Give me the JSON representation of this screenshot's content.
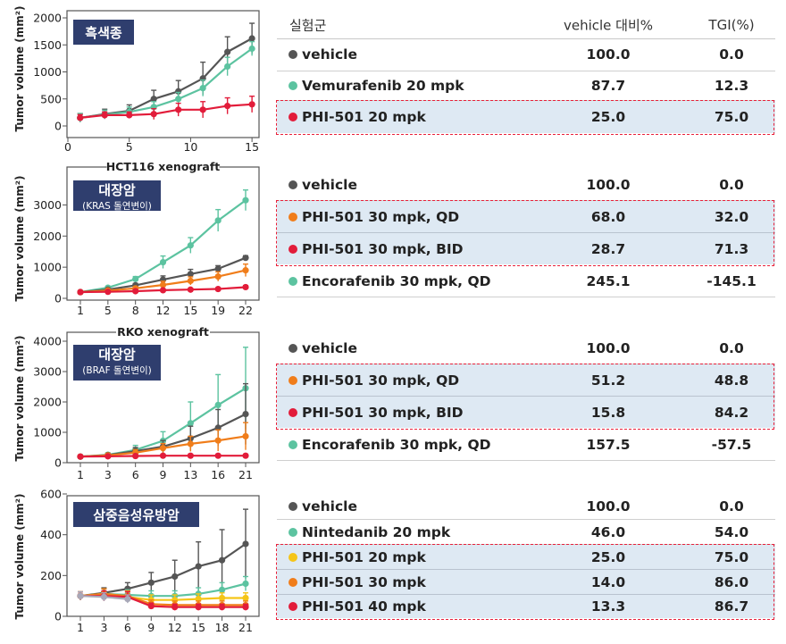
{
  "colors": {
    "vehicle": "#555555",
    "teal": "#5cc3a0",
    "red": "#e21c3a",
    "orange": "#f07d1a",
    "yellow": "#f5c518",
    "gray_light": "#a8a8b8",
    "badge": "#2f3e6e",
    "highlight": "#dee9f3",
    "dash": "#e8203a"
  },
  "table_header": {
    "group": "실험군",
    "vehicle_pct": "vehicle 대비%",
    "tgi": "TGI(%)"
  },
  "charts": [
    {
      "badge": "흑색종",
      "badge_sub": "",
      "panel_title": ""
    },
    {
      "badge": "대장암",
      "badge_sub": "(KRAS 돌연변이)",
      "panel_title": "HCT116 xenograft"
    },
    {
      "badge": "대장암",
      "badge_sub": "(BRAF 돌연변이)",
      "panel_title": "RKO xenograft"
    },
    {
      "badge": "삼중음성유방암",
      "badge_sub": "",
      "panel_title": ""
    }
  ],
  "groups": [
    {
      "rows": [
        {
          "name": "vehicle",
          "color": "vehicle",
          "vehicle_pct": "100.0",
          "tgi": "0.0",
          "hl": false
        },
        {
          "name": "Vemurafenib 20 mpk",
          "color": "teal",
          "vehicle_pct": "87.7",
          "tgi": "12.3",
          "hl": false
        },
        {
          "name": "PHI-501 20 mpk",
          "color": "red",
          "vehicle_pct": "25.0",
          "tgi": "75.0",
          "hl": true
        }
      ]
    },
    {
      "rows": [
        {
          "name": "vehicle",
          "color": "vehicle",
          "vehicle_pct": "100.0",
          "tgi": "0.0",
          "hl": false
        },
        {
          "name": "PHI-501 30 mpk, QD",
          "color": "orange",
          "vehicle_pct": "68.0",
          "tgi": "32.0",
          "hl": true
        },
        {
          "name": "PHI-501 30 mpk, BID",
          "color": "red",
          "vehicle_pct": "28.7",
          "tgi": "71.3",
          "hl": true
        },
        {
          "name": "Encorafenib 30 mpk, QD",
          "color": "teal",
          "vehicle_pct": "245.1",
          "tgi": "-145.1",
          "hl": false
        }
      ]
    },
    {
      "rows": [
        {
          "name": "vehicle",
          "color": "vehicle",
          "vehicle_pct": "100.0",
          "tgi": "0.0",
          "hl": false
        },
        {
          "name": "PHI-501 30 mpk, QD",
          "color": "orange",
          "vehicle_pct": "51.2",
          "tgi": "48.8",
          "hl": true
        },
        {
          "name": "PHI-501 30 mpk, BID",
          "color": "red",
          "vehicle_pct": "15.8",
          "tgi": "84.2",
          "hl": true
        },
        {
          "name": "Encorafenib 30 mpk, QD",
          "color": "teal",
          "vehicle_pct": "157.5",
          "tgi": "-57.5",
          "hl": false
        }
      ]
    },
    {
      "rows": [
        {
          "name": "vehicle",
          "color": "vehicle",
          "vehicle_pct": "100.0",
          "tgi": "0.0",
          "hl": false
        },
        {
          "name": "Nintedanib 20 mpk",
          "color": "teal",
          "vehicle_pct": "46.0",
          "tgi": "54.0",
          "hl": false
        },
        {
          "name": "PHI-501 20 mpk",
          "color": "yellow",
          "vehicle_pct": "25.0",
          "tgi": "75.0",
          "hl": true
        },
        {
          "name": "PHI-501 30 mpk",
          "color": "orange",
          "vehicle_pct": "14.0",
          "tgi": "86.0",
          "hl": true
        },
        {
          "name": "PHI-501 40 mpk",
          "color": "red",
          "vehicle_pct": "13.3",
          "tgi": "86.7",
          "hl": true
        }
      ]
    }
  ],
  "chart_data": [
    {
      "type": "line",
      "ylabel": "Tumor volume (mm²)",
      "ylim": [
        0,
        2000
      ],
      "yticks": [
        0,
        500,
        1000,
        1500,
        2000
      ],
      "xlim": [
        0,
        15.5
      ],
      "xticks": [
        0,
        5,
        10,
        15
      ],
      "series": [
        {
          "color": "vehicle",
          "x": [
            1,
            3,
            5,
            7,
            9,
            11,
            13,
            15
          ],
          "y": [
            150,
            220,
            280,
            500,
            640,
            880,
            1370,
            1620
          ],
          "err": [
            80,
            90,
            110,
            160,
            200,
            300,
            280,
            280
          ]
        },
        {
          "color": "teal",
          "x": [
            1,
            3,
            5,
            7,
            9,
            11,
            13,
            15
          ],
          "y": [
            150,
            210,
            260,
            350,
            500,
            700,
            1100,
            1430
          ],
          "err": [
            80,
            80,
            90,
            100,
            120,
            150,
            170,
            130
          ]
        },
        {
          "color": "red",
          "x": [
            1,
            3,
            5,
            7,
            9,
            11,
            13,
            15
          ],
          "y": [
            150,
            200,
            200,
            220,
            300,
            300,
            370,
            400
          ],
          "err": [
            60,
            60,
            60,
            100,
            120,
            150,
            150,
            150
          ]
        }
      ]
    },
    {
      "type": "line",
      "ylabel": "Tumor volume (mm²)",
      "ylim": [
        0,
        3500
      ],
      "yticks": [
        0,
        1000,
        2000,
        3000
      ],
      "xticks": [
        1,
        5,
        8,
        12,
        15,
        19,
        22
      ],
      "series": [
        {
          "color": "teal",
          "x": [
            1,
            5,
            8,
            12,
            15,
            19,
            22
          ],
          "y": [
            200,
            340,
            620,
            1160,
            1700,
            2500,
            3150
          ],
          "err": [
            30,
            50,
            80,
            200,
            250,
            350,
            330
          ]
        },
        {
          "color": "vehicle",
          "x": [
            1,
            5,
            8,
            12,
            15,
            19,
            22
          ],
          "y": [
            200,
            280,
            420,
            600,
            780,
            950,
            1300
          ],
          "err": [
            30,
            40,
            60,
            120,
            150,
            100,
            70
          ]
        },
        {
          "color": "orange",
          "x": [
            1,
            5,
            8,
            12,
            15,
            19,
            22
          ],
          "y": [
            200,
            250,
            320,
            430,
            560,
            700,
            900
          ],
          "err": [
            30,
            40,
            60,
            120,
            130,
            150,
            200
          ]
        },
        {
          "color": "red",
          "x": [
            1,
            5,
            8,
            12,
            15,
            19,
            22
          ],
          "y": [
            200,
            210,
            230,
            260,
            280,
            300,
            360
          ],
          "err": [
            30,
            30,
            40,
            40,
            40,
            40,
            50
          ]
        }
      ]
    },
    {
      "type": "line",
      "ylabel": "Tumor volume (mm²)",
      "ylim": [
        0,
        4000
      ],
      "yticks": [
        0,
        1000,
        2000,
        3000,
        4000
      ],
      "xticks": [
        1,
        3,
        6,
        9,
        13,
        16,
        21
      ],
      "series": [
        {
          "color": "teal",
          "x": [
            1,
            3,
            6,
            9,
            13,
            16,
            21
          ],
          "y": [
            200,
            260,
            420,
            720,
            1300,
            1900,
            2450
          ],
          "err": [
            40,
            60,
            150,
            300,
            700,
            1000,
            1350
          ]
        },
        {
          "color": "vehicle",
          "x": [
            1,
            3,
            6,
            9,
            13,
            16,
            21
          ],
          "y": [
            200,
            250,
            380,
            530,
            800,
            1150,
            1600
          ],
          "err": [
            40,
            60,
            120,
            200,
            400,
            600,
            1000
          ]
        },
        {
          "color": "orange",
          "x": [
            1,
            3,
            6,
            9,
            13,
            16,
            21
          ],
          "y": [
            200,
            240,
            330,
            480,
            620,
            730,
            870
          ],
          "err": [
            40,
            60,
            100,
            150,
            250,
            350,
            450
          ]
        },
        {
          "color": "red",
          "x": [
            1,
            3,
            6,
            9,
            13,
            16,
            21
          ],
          "y": [
            200,
            210,
            220,
            230,
            230,
            230,
            230
          ],
          "err": [
            40,
            40,
            40,
            40,
            40,
            40,
            40
          ]
        }
      ]
    },
    {
      "type": "line",
      "ylabel": "Tumor volume (mm²)",
      "ylim": [
        0,
        600
      ],
      "yticks": [
        0,
        200,
        400,
        600
      ],
      "xticks": [
        1,
        3,
        6,
        9,
        12,
        15,
        18,
        21
      ],
      "series": [
        {
          "color": "vehicle",
          "x": [
            1,
            3,
            6,
            9,
            12,
            15,
            18,
            21
          ],
          "y": [
            100,
            115,
            135,
            165,
            195,
            245,
            275,
            355
          ],
          "err": [
            20,
            25,
            30,
            50,
            80,
            120,
            150,
            170
          ]
        },
        {
          "color": "teal",
          "x": [
            1,
            3,
            6,
            9,
            12,
            15,
            18,
            21
          ],
          "y": [
            100,
            110,
            105,
            100,
            100,
            110,
            130,
            160
          ],
          "err": [
            20,
            25,
            25,
            25,
            25,
            30,
            35,
            35
          ]
        },
        {
          "color": "yellow",
          "x": [
            1,
            3,
            6,
            9,
            12,
            15,
            18,
            21
          ],
          "y": [
            100,
            110,
            95,
            80,
            80,
            85,
            90,
            90
          ],
          "err": [
            20,
            25,
            25,
            25,
            25,
            25,
            25,
            25
          ]
        },
        {
          "color": "orange",
          "x": [
            1,
            3,
            6,
            9,
            12,
            15,
            18,
            21
          ],
          "y": [
            100,
            110,
            100,
            60,
            55,
            55,
            55,
            55
          ],
          "err": [
            20,
            25,
            25,
            20,
            20,
            20,
            20,
            20
          ]
        },
        {
          "color": "red",
          "x": [
            1,
            3,
            6,
            9,
            12,
            15,
            18,
            21
          ],
          "y": [
            100,
            100,
            95,
            50,
            45,
            45,
            45,
            45
          ],
          "err": [
            20,
            25,
            25,
            15,
            15,
            15,
            15,
            15
          ]
        },
        {
          "color": "gray_light",
          "x": [
            1,
            3,
            6
          ],
          "y": [
            100,
            95,
            85
          ],
          "err": [
            20,
            20,
            20
          ]
        }
      ]
    }
  ]
}
